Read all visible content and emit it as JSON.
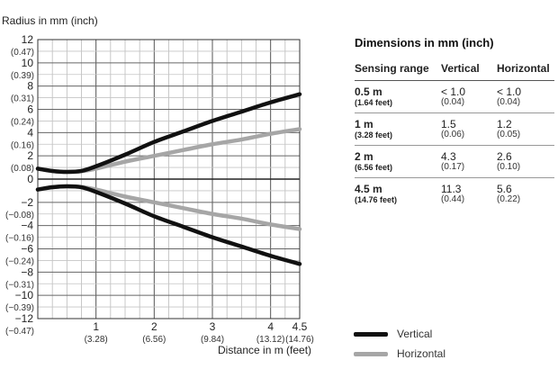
{
  "chart_data": {
    "type": "line",
    "ylabel": "Radius in mm (inch)",
    "xlabel": "Distance in m (feet)",
    "xlim": [
      0,
      4.5
    ],
    "ylim": [
      -12,
      12
    ],
    "grid": true,
    "y_ticks": [
      {
        "value": 12,
        "label": "12",
        "sub": "(0.47)"
      },
      {
        "value": 10,
        "label": "10",
        "sub": "(0.39)"
      },
      {
        "value": 8,
        "label": "8",
        "sub": "(0.31)"
      },
      {
        "value": 6,
        "label": "6",
        "sub": "(0.24)"
      },
      {
        "value": 4,
        "label": "4",
        "sub": "(0.16)"
      },
      {
        "value": 2,
        "label": "2",
        "sub": "(0.08)"
      },
      {
        "value": 0,
        "label": "0",
        "sub": ""
      },
      {
        "value": -2,
        "label": "−2",
        "sub": "(−0.08)"
      },
      {
        "value": -4,
        "label": "−4",
        "sub": "(−0.16)"
      },
      {
        "value": -6,
        "label": "−6",
        "sub": "(−0.24)"
      },
      {
        "value": -8,
        "label": "−8",
        "sub": "(−0.31)"
      },
      {
        "value": -10,
        "label": "−10",
        "sub": "(−0.39)"
      },
      {
        "value": -12,
        "label": "−12",
        "sub": "(−0.47)"
      }
    ],
    "x_ticks": [
      {
        "value": 1,
        "label": "1",
        "sub": "(3.28)"
      },
      {
        "value": 2,
        "label": "2",
        "sub": "(6.56)"
      },
      {
        "value": 3,
        "label": "3",
        "sub": "(9.84)"
      },
      {
        "value": 4,
        "label": "4",
        "sub": "(13.12)"
      },
      {
        "value": 4.5,
        "label": "4.5",
        "sub": "(14.76)"
      }
    ],
    "series": [
      {
        "name": "Vertical",
        "color": "#111111",
        "x": [
          0,
          0.25,
          0.5,
          0.75,
          1.0,
          1.5,
          2.0,
          2.5,
          3.0,
          3.5,
          4.0,
          4.5
        ],
        "upper": [
          0.9,
          0.7,
          0.62,
          0.7,
          1.1,
          2.1,
          3.2,
          4.1,
          5.0,
          5.8,
          6.6,
          7.3
        ],
        "lower": [
          -0.9,
          -0.7,
          -0.62,
          -0.7,
          -1.1,
          -2.1,
          -3.2,
          -4.1,
          -5.0,
          -5.8,
          -6.6,
          -7.3
        ]
      },
      {
        "name": "Horizontal",
        "color": "#a6a6a6",
        "x": [
          0,
          0.25,
          0.5,
          0.75,
          1.0,
          1.5,
          2.0,
          2.5,
          3.0,
          3.5,
          4.0,
          4.5
        ],
        "upper": [
          0.9,
          0.7,
          0.62,
          0.68,
          0.9,
          1.5,
          2.0,
          2.5,
          3.0,
          3.4,
          3.9,
          4.3
        ],
        "lower": [
          -0.9,
          -0.7,
          -0.62,
          -0.68,
          -0.9,
          -1.5,
          -2.0,
          -2.5,
          -3.0,
          -3.4,
          -3.9,
          -4.3
        ]
      }
    ]
  },
  "legend": [
    {
      "label": "Vertical",
      "color": "#111111"
    },
    {
      "label": "Horizontal",
      "color": "#a6a6a6"
    }
  ],
  "dimensions": {
    "title": "Dimensions in mm (inch)",
    "headers": [
      "Sensing range",
      "Vertical",
      "Horizontal"
    ],
    "rows": [
      {
        "range": "0.5 m",
        "range_sub": "(1.64 feet)",
        "vertical": "< 1.0",
        "vertical_sub": "(0.04)",
        "horizontal": "< 1.0",
        "horizontal_sub": "(0.04)"
      },
      {
        "range": "1 m",
        "range_sub": "(3.28 feet)",
        "vertical": "1.5",
        "vertical_sub": "(0.06)",
        "horizontal": "1.2",
        "horizontal_sub": "(0.05)"
      },
      {
        "range": "2 m",
        "range_sub": "(6.56 feet)",
        "vertical": "4.3",
        "vertical_sub": "(0.17)",
        "horizontal": "2.6",
        "horizontal_sub": "(0.10)"
      },
      {
        "range": "4.5 m",
        "range_sub": "(14.76 feet)",
        "vertical": "11.3",
        "vertical_sub": "(0.44)",
        "horizontal": "5.6",
        "horizontal_sub": "(0.22)"
      }
    ]
  }
}
